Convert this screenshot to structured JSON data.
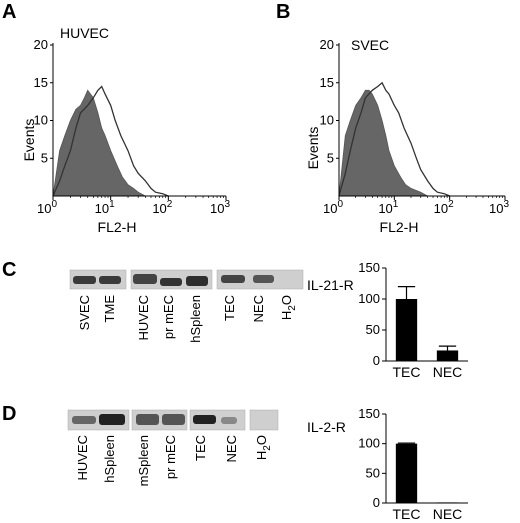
{
  "panels": {
    "A": {
      "letter": "A",
      "cell_label": "HUVEC",
      "y_label": "Events",
      "x_label": "FL2-H",
      "y_ticks": [
        "5",
        "10",
        "15",
        "20"
      ],
      "x_ticks": [
        {
          "base": "10",
          "exp": "0"
        },
        {
          "base": "10",
          "exp": "1"
        },
        {
          "base": "10",
          "exp": "2"
        },
        {
          "base": "10",
          "exp": "3"
        }
      ]
    },
    "B": {
      "letter": "B",
      "cell_label": "SVEC",
      "y_label": "Events",
      "x_label": "FL2-H",
      "y_ticks": [
        "5",
        "10",
        "15",
        "20"
      ],
      "x_ticks": [
        {
          "base": "10",
          "exp": "0"
        },
        {
          "base": "10",
          "exp": "1"
        },
        {
          "base": "10",
          "exp": "2"
        },
        {
          "base": "10",
          "exp": "3"
        }
      ]
    },
    "C": {
      "letter": "C",
      "blot_label": "IL-21-R",
      "lanes": [
        "SVEC",
        "TME",
        "HUVEC",
        "pr mEC",
        "hSpleen",
        "TEC",
        "NEC",
        "H2O"
      ]
    },
    "D": {
      "letter": "D",
      "blot_label": "IL-2-R",
      "lanes": [
        "HUVEC",
        "hSpleen",
        "mSpleen",
        "pr mEC",
        "TEC",
        "NEC",
        "H2O"
      ]
    }
  },
  "chart_data": [
    {
      "type": "area",
      "panel": "A",
      "title": "HUVEC",
      "xlabel": "FL2-H",
      "ylabel": "Events",
      "x_scale": "log",
      "xlim": [
        1,
        1000
      ],
      "ylim": [
        0,
        20
      ],
      "series": [
        {
          "fill": "#666666",
          "x": [
            1,
            1.3,
            1.6,
            2,
            2.5,
            3,
            3.5,
            4,
            5,
            6,
            7,
            8,
            10,
            13,
            16,
            20,
            25,
            30,
            40
          ],
          "y": [
            0,
            6,
            8,
            10,
            11.5,
            12,
            13,
            14,
            13,
            11,
            9,
            8,
            6,
            4,
            2.5,
            1.5,
            1,
            0.5,
            0
          ]
        },
        {
          "fill": "none",
          "x": [
            1,
            1.3,
            1.6,
            2,
            2.5,
            3,
            4,
            5,
            6,
            7,
            8,
            10,
            12,
            15,
            20,
            25,
            30,
            40,
            50,
            60,
            80,
            100
          ],
          "y": [
            0,
            2,
            4,
            6,
            9,
            11,
            12,
            13,
            14,
            14.5,
            13.5,
            12,
            10,
            8,
            6,
            4,
            3,
            2,
            1,
            0.5,
            0.3,
            0
          ]
        }
      ]
    },
    {
      "type": "area",
      "panel": "B",
      "title": "SVEC",
      "xlabel": "FL2-H",
      "ylabel": "Events",
      "x_scale": "log",
      "xlim": [
        1,
        1000
      ],
      "ylim": [
        0,
        20
      ],
      "series": [
        {
          "fill": "#666666",
          "x": [
            1,
            1.3,
            1.6,
            2,
            2.5,
            3,
            3.5,
            4,
            5,
            6,
            7,
            8,
            10,
            13,
            16,
            20,
            30,
            40
          ],
          "y": [
            0,
            8,
            10,
            12,
            13,
            14,
            14,
            13.5,
            12,
            10,
            8,
            6,
            4,
            2.5,
            1.5,
            1,
            0.5,
            0
          ]
        },
        {
          "fill": "none",
          "x": [
            1,
            1.3,
            1.6,
            2,
            2.5,
            3,
            4,
            5,
            6,
            7,
            8,
            10,
            12,
            15,
            20,
            25,
            30,
            40,
            50,
            60,
            80,
            100
          ],
          "y": [
            0,
            3,
            6,
            9,
            11,
            13,
            14,
            14.5,
            15,
            14,
            13.5,
            12,
            11,
            9,
            7,
            5,
            3.5,
            2,
            1,
            0.5,
            0.3,
            0
          ]
        }
      ]
    },
    {
      "type": "bar",
      "panel": "C",
      "categories": [
        "TEC",
        "NEC"
      ],
      "values": [
        100,
        17
      ],
      "errors": [
        20,
        7
      ],
      "ylim": [
        0,
        150
      ],
      "yticks": [
        0,
        50,
        100,
        150
      ]
    },
    {
      "type": "bar",
      "panel": "D",
      "categories": [
        "TEC",
        "NEC"
      ],
      "values": [
        100,
        1
      ],
      "errors": [
        1,
        0
      ],
      "ylim": [
        0,
        150
      ],
      "yticks": [
        0,
        50,
        100,
        150
      ]
    }
  ]
}
